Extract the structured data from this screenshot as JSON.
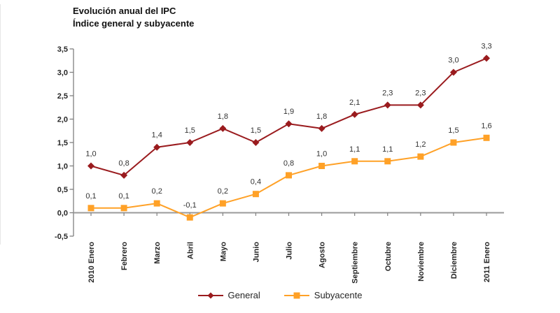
{
  "chart_data": {
    "type": "line",
    "title": "Evolución anual del IPC",
    "subtitle": "Índice general y subyacente",
    "categories": [
      "2010 Enero",
      "Febrero",
      "Marzo",
      "Abril",
      "Mayo",
      "Junio",
      "Julio",
      "Agosto",
      "Septiembre",
      "Octubre",
      "Noviembre",
      "Diciembre",
      "2011 Enero"
    ],
    "series": [
      {
        "name": "General",
        "color": "#9A1B1E",
        "marker": "diamond",
        "values": [
          1.0,
          0.8,
          1.4,
          1.5,
          1.8,
          1.5,
          1.9,
          1.8,
          2.1,
          2.3,
          2.3,
          3.0,
          3.3
        ]
      },
      {
        "name": "Subyacente",
        "color": "#FFA127",
        "marker": "square",
        "values": [
          0.1,
          0.1,
          0.2,
          -0.1,
          0.2,
          0.4,
          0.8,
          1.0,
          1.1,
          1.1,
          1.2,
          1.5,
          1.6
        ]
      }
    ],
    "ylim": [
      -0.5,
      3.5
    ],
    "ytick_step": 0.5,
    "decimal_separator": ",",
    "grid": false,
    "data_labels": true,
    "legend_position": "bottom",
    "axis_color": "#808080",
    "zero_line_color": "#9a9a9a",
    "tick_label_color": "#262626",
    "data_label_color": "#333333"
  }
}
